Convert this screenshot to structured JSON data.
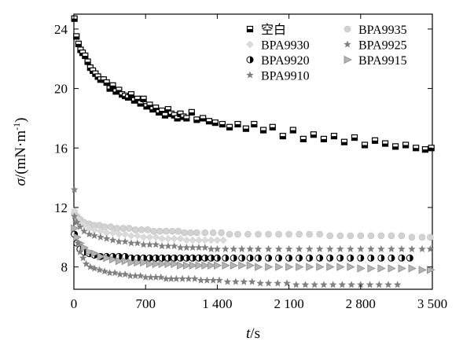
{
  "chart_data": {
    "type": "scatter",
    "title": "",
    "xlabel": "t/s",
    "ylabel": "σ/(mN·m⁻¹)",
    "xlabel_parts": {
      "var": "t",
      "unit": "/s"
    },
    "ylabel_parts": {
      "var": "σ",
      "unit_prefix": "/(mN·m",
      "unit_sup": "-1",
      "unit_suffix": ")"
    },
    "xlim": [
      0,
      3500
    ],
    "ylim": [
      6.5,
      25
    ],
    "xticks": [
      0,
      700,
      1400,
      2100,
      2800,
      3500
    ],
    "xtick_labels": [
      "0",
      "700",
      "1 400",
      "2 100",
      "2 800",
      "3 500"
    ],
    "yticks": [
      8,
      12,
      16,
      20,
      24
    ],
    "ytick_labels": [
      "8",
      "12",
      "16",
      "20",
      "24"
    ],
    "grid": false,
    "legend_position": "top-right",
    "legend_columns": 2,
    "series": [
      {
        "name": "空白",
        "marker": "square-bar",
        "color": "#000000",
        "x": [
          5,
          25,
          45,
          65,
          85,
          110,
          135,
          160,
          185,
          210,
          235,
          260,
          290,
          320,
          350,
          380,
          410,
          440,
          470,
          500,
          530,
          560,
          590,
          620,
          650,
          680,
          710,
          740,
          770,
          800,
          830,
          860,
          890,
          920,
          950,
          980,
          1010,
          1040,
          1070,
          1100,
          1150,
          1200,
          1260,
          1320,
          1380,
          1450,
          1520,
          1600,
          1680,
          1760,
          1850,
          1940,
          2040,
          2140,
          2240,
          2340,
          2440,
          2540,
          2640,
          2740,
          2840,
          2940,
          3040,
          3140,
          3240,
          3340,
          3430,
          3490
        ],
        "y": [
          24.7,
          23.5,
          23.0,
          22.6,
          22.4,
          22.2,
          21.8,
          21.4,
          21.2,
          21.0,
          20.8,
          20.6,
          20.6,
          20.4,
          20.0,
          20.2,
          19.8,
          19.9,
          19.6,
          19.5,
          19.4,
          19.6,
          19.2,
          19.3,
          19.0,
          19.3,
          18.8,
          18.9,
          18.6,
          18.7,
          18.4,
          18.5,
          18.2,
          18.6,
          18.3,
          18.2,
          18.0,
          18.3,
          18.1,
          18.0,
          18.4,
          17.9,
          18.0,
          17.8,
          17.7,
          17.6,
          17.4,
          17.6,
          17.3,
          17.6,
          17.2,
          17.4,
          16.8,
          17.2,
          16.6,
          16.9,
          16.6,
          16.8,
          16.4,
          16.7,
          16.2,
          16.5,
          16.3,
          16.1,
          16.2,
          16.0,
          15.9,
          16.0
        ]
      },
      {
        "name": "BPA9935",
        "marker": "circle",
        "color": "#d2d2d2",
        "x": [
          5,
          30,
          60,
          100,
          150,
          200,
          250,
          300,
          360,
          420,
          480,
          540,
          600,
          660,
          720,
          780,
          840,
          900,
          960,
          1020,
          1080,
          1140,
          1200,
          1280,
          1360,
          1440,
          1520,
          1600,
          1700,
          1800,
          1900,
          2000,
          2100,
          2200,
          2300,
          2400,
          2500,
          2600,
          2700,
          2800,
          2900,
          3000,
          3100,
          3200,
          3300,
          3400,
          3480
        ],
        "y": [
          11.6,
          11.4,
          11.2,
          11.0,
          10.9,
          10.8,
          10.8,
          10.7,
          10.7,
          10.6,
          10.6,
          10.6,
          10.5,
          10.5,
          10.5,
          10.4,
          10.4,
          10.4,
          10.4,
          10.4,
          10.3,
          10.3,
          10.3,
          10.3,
          10.3,
          10.3,
          10.2,
          10.2,
          10.2,
          10.2,
          10.2,
          10.2,
          10.2,
          10.2,
          10.2,
          10.2,
          10.1,
          10.1,
          10.1,
          10.1,
          10.1,
          10.1,
          10.1,
          10.1,
          10.0,
          10.0,
          10.0
        ]
      },
      {
        "name": "BPA9930",
        "marker": "diamond",
        "color": "#dadada",
        "x": [
          5,
          30,
          60,
          100,
          150,
          200,
          260,
          320,
          380,
          440,
          500,
          560,
          620,
          680,
          740,
          800,
          860,
          920,
          980,
          1040,
          1100,
          1160,
          1220,
          1280,
          1340,
          1400,
          1460
        ],
        "y": [
          11.8,
          11.3,
          11.0,
          10.8,
          10.6,
          10.5,
          10.4,
          10.3,
          10.3,
          10.2,
          10.2,
          10.1,
          10.1,
          10.0,
          10.0,
          10.0,
          9.9,
          9.9,
          9.9,
          9.9,
          9.8,
          9.8,
          9.8,
          9.8,
          9.8,
          9.8,
          9.8
        ]
      },
      {
        "name": "BPA9925",
        "marker": "star",
        "color": "#808080",
        "x": [
          5,
          30,
          60,
          100,
          150,
          200,
          260,
          320,
          380,
          440,
          500,
          560,
          620,
          680,
          740,
          800,
          860,
          920,
          980,
          1040,
          1100,
          1160,
          1220,
          1280,
          1340,
          1400,
          1480,
          1560,
          1640,
          1720,
          1800,
          1900,
          2000,
          2100,
          2200,
          2300,
          2400,
          2500,
          2600,
          2700,
          2800,
          2900,
          3000,
          3100,
          3200,
          3300,
          3400,
          3480
        ],
        "y": [
          11.4,
          11.0,
          10.7,
          10.4,
          10.2,
          10.1,
          10.0,
          9.9,
          9.8,
          9.7,
          9.7,
          9.6,
          9.6,
          9.5,
          9.5,
          9.5,
          9.4,
          9.4,
          9.4,
          9.3,
          9.3,
          9.3,
          9.3,
          9.3,
          9.2,
          9.2,
          9.2,
          9.2,
          9.2,
          9.2,
          9.2,
          9.2,
          9.2,
          9.2,
          9.2,
          9.2,
          9.2,
          9.2,
          9.2,
          9.2,
          9.2,
          9.2,
          9.2,
          9.2,
          9.2,
          9.2,
          9.2,
          9.2
        ]
      },
      {
        "name": "BPA9920",
        "marker": "half-circle",
        "color": "#000000",
        "x": [
          5,
          30,
          60,
          100,
          150,
          200,
          260,
          320,
          380,
          440,
          500,
          560,
          620,
          680,
          740,
          800,
          860,
          920,
          980,
          1040,
          1100,
          1160,
          1220,
          1280,
          1340,
          1400,
          1480,
          1560,
          1640,
          1720,
          1800,
          1900,
          2000,
          2100,
          2200,
          2300,
          2400,
          2500,
          2600,
          2700,
          2800,
          2900,
          3000,
          3100,
          3200,
          3280
        ],
        "y": [
          10.2,
          9.6,
          9.2,
          9.0,
          8.9,
          8.8,
          8.7,
          8.7,
          8.7,
          8.7,
          8.7,
          8.6,
          8.6,
          8.6,
          8.6,
          8.6,
          8.6,
          8.6,
          8.6,
          8.6,
          8.6,
          8.6,
          8.6,
          8.6,
          8.6,
          8.6,
          8.6,
          8.6,
          8.6,
          8.6,
          8.6,
          8.6,
          8.6,
          8.6,
          8.6,
          8.6,
          8.6,
          8.6,
          8.6,
          8.6,
          8.6,
          8.6,
          8.6,
          8.6,
          8.6,
          8.6
        ]
      },
      {
        "name": "BPA9915",
        "marker": "triangle-right",
        "color": "#8a8a8a",
        "x": [
          5,
          30,
          60,
          100,
          150,
          200,
          260,
          320,
          380,
          440,
          500,
          560,
          620,
          680,
          740,
          800,
          860,
          920,
          980,
          1040,
          1100,
          1160,
          1220,
          1280,
          1340,
          1400,
          1480,
          1560,
          1640,
          1720,
          1800,
          1900,
          2000,
          2100,
          2200,
          2300,
          2400,
          2500,
          2600,
          2700,
          2800,
          2900,
          3000,
          3100,
          3200,
          3300,
          3400,
          3480
        ],
        "y": [
          10.6,
          10.0,
          9.6,
          9.3,
          9.0,
          8.9,
          8.7,
          8.6,
          8.5,
          8.4,
          8.4,
          8.3,
          8.3,
          8.3,
          8.2,
          8.2,
          8.2,
          8.2,
          8.2,
          8.1,
          8.1,
          8.1,
          8.1,
          8.1,
          8.1,
          8.1,
          8.1,
          8.1,
          8.1,
          8.1,
          8.0,
          8.0,
          8.0,
          8.0,
          8.0,
          8.0,
          8.0,
          8.0,
          8.0,
          8.0,
          7.9,
          7.9,
          7.9,
          7.9,
          7.9,
          7.9,
          7.8,
          7.8
        ]
      },
      {
        "name": "BPA9910",
        "marker": "star",
        "color": "#808080",
        "x": [
          5,
          20,
          40,
          60,
          90,
          120,
          160,
          200,
          250,
          300,
          350,
          400,
          450,
          500,
          550,
          600,
          650,
          700,
          750,
          800,
          850,
          900,
          950,
          1000,
          1060,
          1120,
          1180,
          1240,
          1300,
          1360,
          1420,
          1500,
          1580,
          1660,
          1740,
          1820,
          1900,
          1990,
          2080,
          2170,
          2260,
          2350,
          2440,
          2530,
          2620,
          2710,
          2800,
          2890,
          2980,
          3070,
          3160
        ],
        "y": [
          13.2,
          11.0,
          9.6,
          9.0,
          8.6,
          8.2,
          8.0,
          7.9,
          7.8,
          7.7,
          7.6,
          7.6,
          7.5,
          7.5,
          7.4,
          7.4,
          7.4,
          7.3,
          7.3,
          7.3,
          7.3,
          7.2,
          7.2,
          7.2,
          7.2,
          7.2,
          7.2,
          7.1,
          7.1,
          7.1,
          7.1,
          7.0,
          7.0,
          7.0,
          7.0,
          6.9,
          6.9,
          6.9,
          6.9,
          6.8,
          6.8,
          6.8,
          6.8,
          6.8,
          6.8,
          6.8,
          6.8,
          6.8,
          6.8,
          6.8,
          6.8
        ]
      }
    ]
  }
}
